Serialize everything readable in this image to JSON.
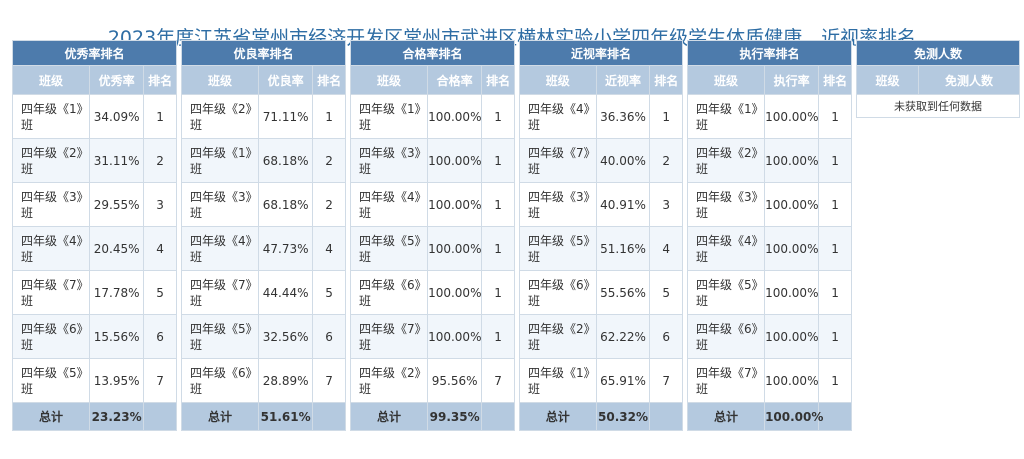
{
  "title": "2023年度江苏省常州市经济开发区常州市武进区横林实验小学四年级学生体质健康、近视率排名",
  "col_class": "班级",
  "col_rank": "排名",
  "total_label": "总计",
  "panels": [
    {
      "caption": "优秀率排名",
      "rate_header": "优秀率",
      "rows": [
        {
          "cls": "四年级《1》班",
          "rate": "34.09%",
          "rank": "1"
        },
        {
          "cls": "四年级《2》班",
          "rate": "31.11%",
          "rank": "2"
        },
        {
          "cls": "四年级《3》班",
          "rate": "29.55%",
          "rank": "3"
        },
        {
          "cls": "四年级《4》班",
          "rate": "20.45%",
          "rank": "4"
        },
        {
          "cls": "四年级《7》班",
          "rate": "17.78%",
          "rank": "5"
        },
        {
          "cls": "四年级《6》班",
          "rate": "15.56%",
          "rank": "6"
        },
        {
          "cls": "四年级《5》班",
          "rate": "13.95%",
          "rank": "7"
        }
      ],
      "total": "23.23%"
    },
    {
      "caption": "优良率排名",
      "rate_header": "优良率",
      "rows": [
        {
          "cls": "四年级《2》班",
          "rate": "71.11%",
          "rank": "1"
        },
        {
          "cls": "四年级《1》班",
          "rate": "68.18%",
          "rank": "2"
        },
        {
          "cls": "四年级《3》班",
          "rate": "68.18%",
          "rank": "2"
        },
        {
          "cls": "四年级《4》班",
          "rate": "47.73%",
          "rank": "4"
        },
        {
          "cls": "四年级《7》班",
          "rate": "44.44%",
          "rank": "5"
        },
        {
          "cls": "四年级《5》班",
          "rate": "32.56%",
          "rank": "6"
        },
        {
          "cls": "四年级《6》班",
          "rate": "28.89%",
          "rank": "7"
        }
      ],
      "total": "51.61%"
    },
    {
      "caption": "合格率排名",
      "rate_header": "合格率",
      "rows": [
        {
          "cls": "四年级《1》班",
          "rate": "100.00%",
          "rank": "1"
        },
        {
          "cls": "四年级《3》班",
          "rate": "100.00%",
          "rank": "1"
        },
        {
          "cls": "四年级《4》班",
          "rate": "100.00%",
          "rank": "1"
        },
        {
          "cls": "四年级《5》班",
          "rate": "100.00%",
          "rank": "1"
        },
        {
          "cls": "四年级《6》班",
          "rate": "100.00%",
          "rank": "1"
        },
        {
          "cls": "四年级《7》班",
          "rate": "100.00%",
          "rank": "1"
        },
        {
          "cls": "四年级《2》班",
          "rate": "95.56%",
          "rank": "7"
        }
      ],
      "total": "99.35%"
    },
    {
      "caption": "近视率排名",
      "rate_header": "近视率",
      "rows": [
        {
          "cls": "四年级《4》班",
          "rate": "36.36%",
          "rank": "1"
        },
        {
          "cls": "四年级《7》班",
          "rate": "40.00%",
          "rank": "2"
        },
        {
          "cls": "四年级《3》班",
          "rate": "40.91%",
          "rank": "3"
        },
        {
          "cls": "四年级《5》班",
          "rate": "51.16%",
          "rank": "4"
        },
        {
          "cls": "四年级《6》班",
          "rate": "55.56%",
          "rank": "5"
        },
        {
          "cls": "四年级《2》班",
          "rate": "62.22%",
          "rank": "6"
        },
        {
          "cls": "四年级《1》班",
          "rate": "65.91%",
          "rank": "7"
        }
      ],
      "total": "50.32%"
    },
    {
      "caption": "执行率排名",
      "rate_header": "执行率",
      "rows": [
        {
          "cls": "四年级《1》班",
          "rate": "100.00%",
          "rank": "1"
        },
        {
          "cls": "四年级《2》班",
          "rate": "100.00%",
          "rank": "1"
        },
        {
          "cls": "四年级《3》班",
          "rate": "100.00%",
          "rank": "1"
        },
        {
          "cls": "四年级《4》班",
          "rate": "100.00%",
          "rank": "1"
        },
        {
          "cls": "四年级《5》班",
          "rate": "100.00%",
          "rank": "1"
        },
        {
          "cls": "四年级《6》班",
          "rate": "100.00%",
          "rank": "1"
        },
        {
          "cls": "四年级《7》班",
          "rate": "100.00%",
          "rank": "1"
        }
      ],
      "total": "100.00%"
    }
  ],
  "exempt": {
    "caption": "免测人数",
    "col_count": "免测人数",
    "empty_text": "未获取到任何数据"
  }
}
